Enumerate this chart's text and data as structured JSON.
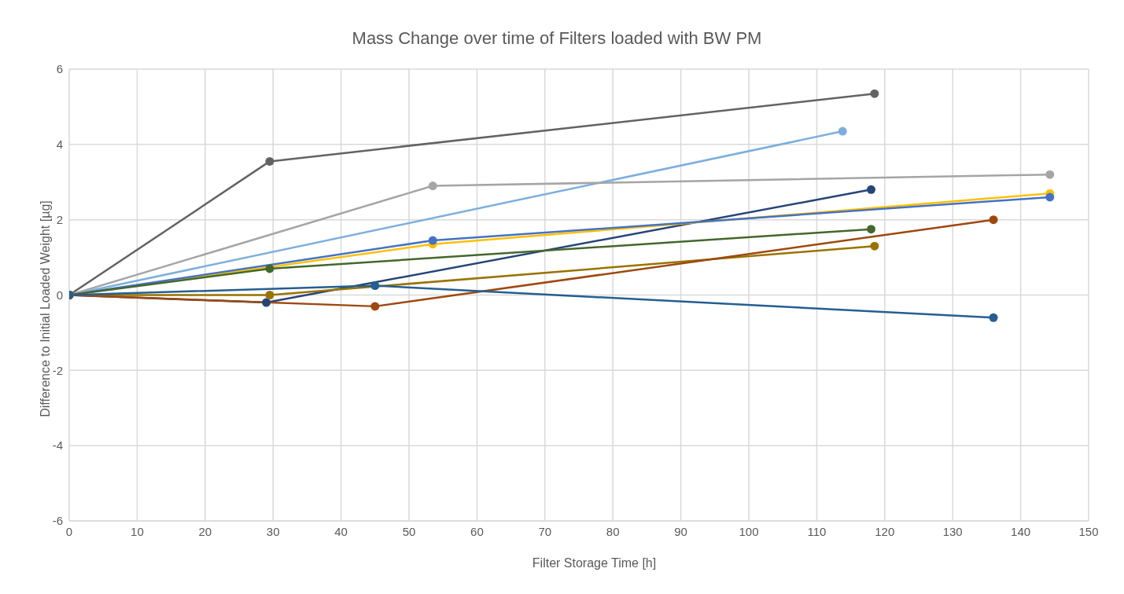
{
  "chart_data": {
    "type": "line",
    "title": "Mass Change over time of Filters loaded with BW PM",
    "xlabel": "Filter Storage Time [h]",
    "ylabel": "Difference to Initial Loaded Weight [µg]",
    "xlim": [
      0,
      150
    ],
    "xticks": [
      0,
      10,
      20,
      30,
      40,
      50,
      60,
      70,
      80,
      90,
      100,
      110,
      120,
      130,
      140,
      150
    ],
    "ylim": [
      -6,
      6
    ],
    "yticks": [
      -6,
      -4,
      -2,
      0,
      2,
      4,
      6
    ],
    "grid": true,
    "marker": "circle",
    "line_style": "solid",
    "series": [
      {
        "color": "#636363",
        "x": [
          0,
          29.5,
          118.5
        ],
        "values": [
          0,
          3.55,
          5.35
        ]
      },
      {
        "color": "#7cafdd",
        "x": [
          0,
          113.8
        ],
        "values": [
          0,
          4.35
        ]
      },
      {
        "color": "#a5a5a5",
        "x": [
          0,
          53.5,
          144.3
        ],
        "values": [
          0,
          2.9,
          3.2
        ]
      },
      {
        "color": "#264478",
        "x": [
          0,
          29,
          118
        ],
        "values": [
          0,
          -0.2,
          2.8
        ]
      },
      {
        "color": "#ffc000",
        "x": [
          0,
          53.5,
          144.3
        ],
        "values": [
          0,
          1.35,
          2.7
        ]
      },
      {
        "color": "#4472c4",
        "x": [
          0,
          53.5,
          144.3
        ],
        "values": [
          0,
          1.45,
          2.6
        ]
      },
      {
        "color": "#43682b",
        "x": [
          0,
          29.5,
          118
        ],
        "values": [
          0,
          0.7,
          1.75
        ]
      },
      {
        "color": "#997300",
        "x": [
          0,
          29.5,
          118.5
        ],
        "values": [
          0,
          0,
          1.3
        ]
      },
      {
        "color": "#9e480e",
        "x": [
          0,
          45,
          136
        ],
        "values": [
          0,
          -0.3,
          2.0
        ]
      },
      {
        "color": "#255e91",
        "x": [
          0,
          45,
          136
        ],
        "values": [
          0,
          0.25,
          -0.6
        ]
      }
    ]
  }
}
